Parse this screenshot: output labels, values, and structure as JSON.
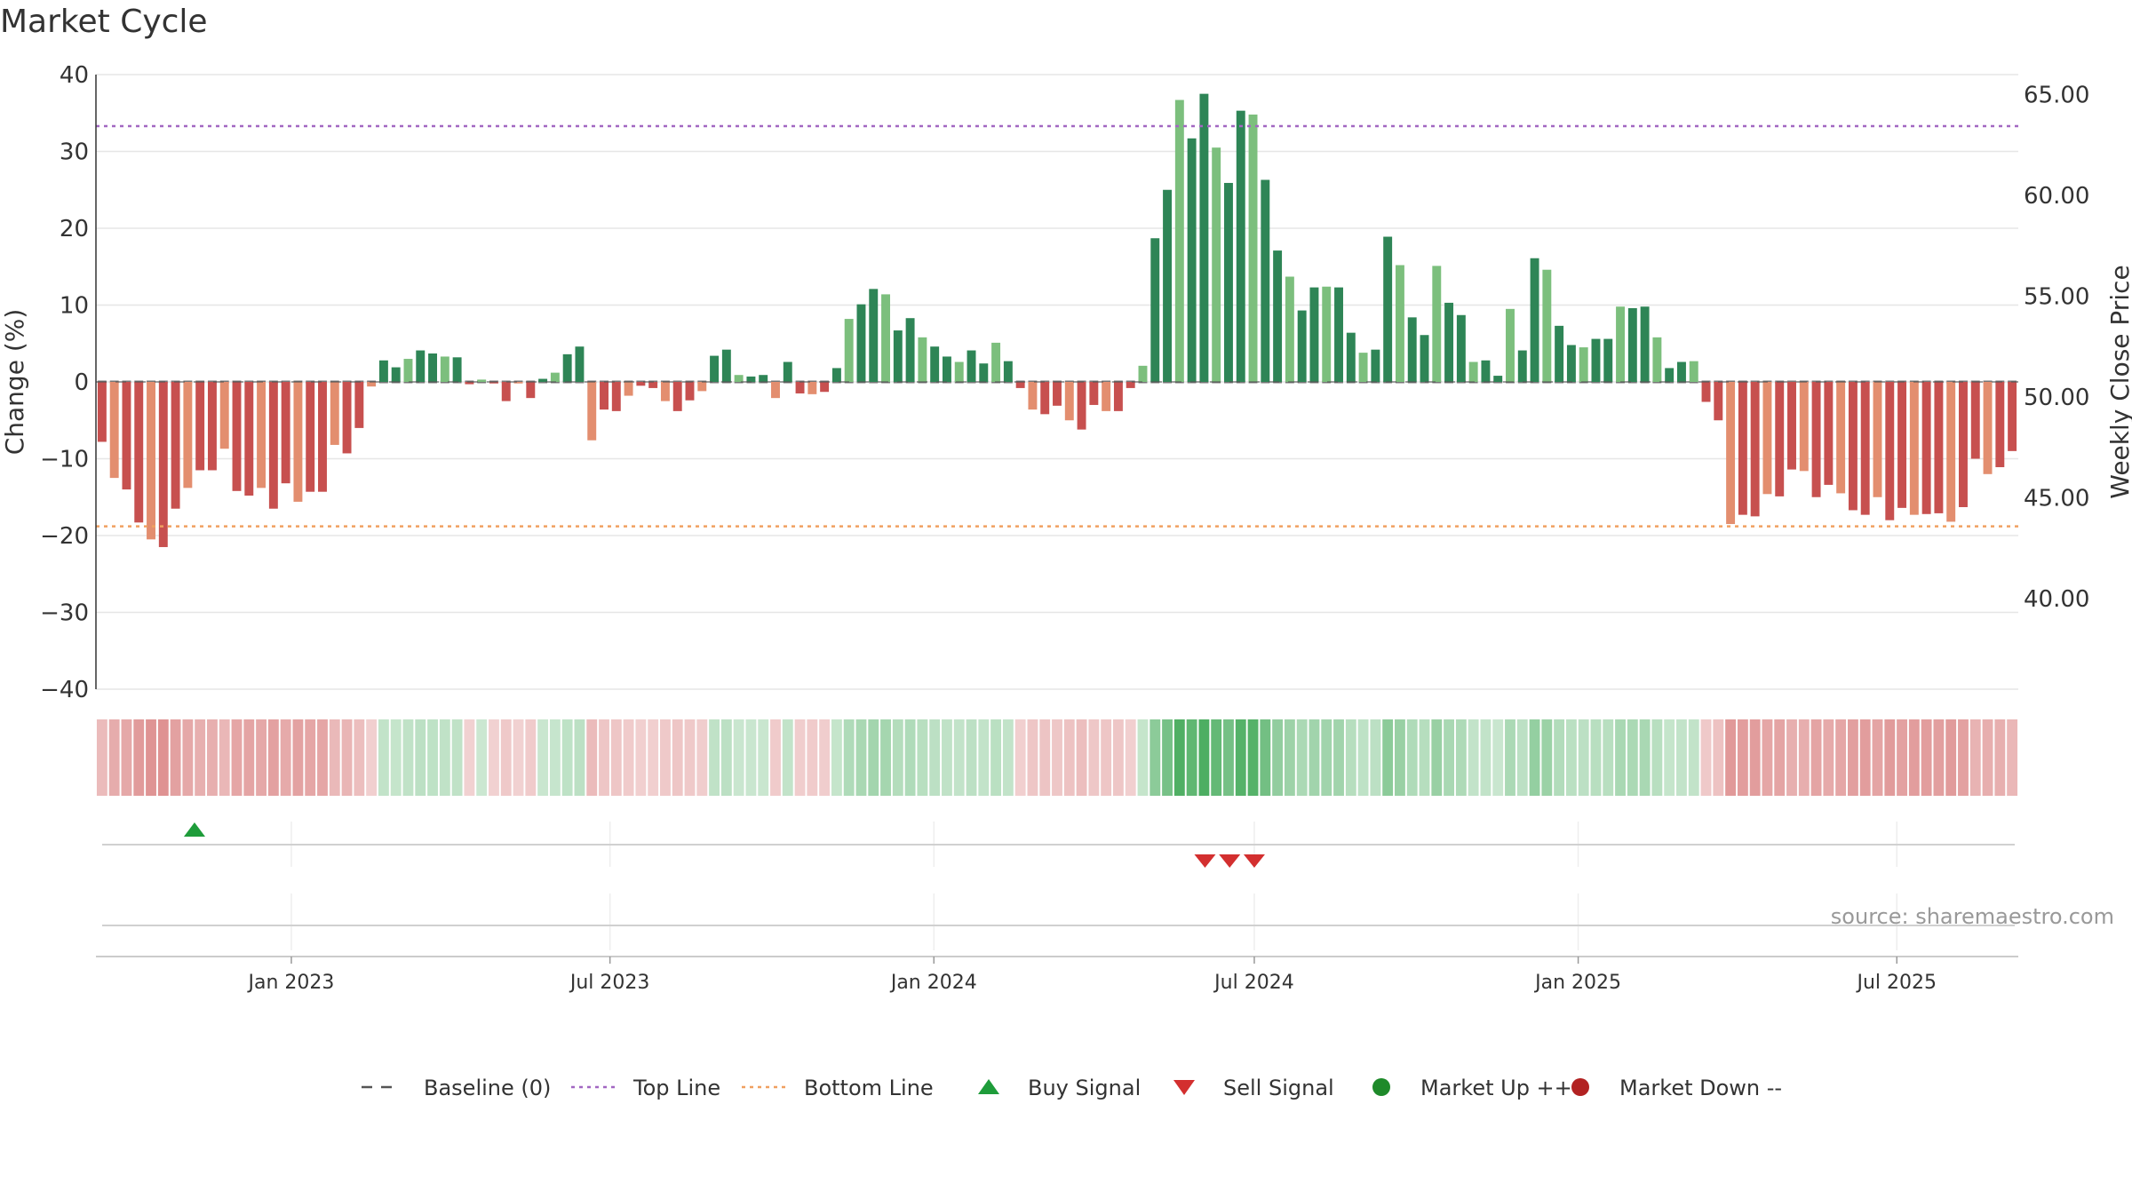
{
  "title": "Market Cycle",
  "source": "source: sharemaestro.com",
  "colors": {
    "down_dark": "#c7504f",
    "down_light": "#e38e6f",
    "up_dark": "#2e8556",
    "up_light": "#7cbf7d",
    "top_line": "#a267c2",
    "bottom_line": "#f0a060",
    "baseline": "#555555",
    "buy": "#1e9c3a",
    "sell": "#d32f2f",
    "market_up": "#1e8a2a",
    "market_down": "#b22222"
  },
  "legend": [
    {
      "label": "Baseline (0)",
      "icon": "dash-line",
      "color": "#555555"
    },
    {
      "label": "Top Line",
      "icon": "dot-line",
      "color": "#a267c2"
    },
    {
      "label": "Bottom Line",
      "icon": "dot-line",
      "color": "#f0a060"
    },
    {
      "label": "Buy Signal",
      "icon": "triangle-up",
      "color": "#1e9c3a"
    },
    {
      "label": "Sell Signal",
      "icon": "triangle-down",
      "color": "#d32f2f"
    },
    {
      "label": "Market Up ++",
      "icon": "circle",
      "color": "#1e8a2a"
    },
    {
      "label": "Market Down --",
      "icon": "circle",
      "color": "#b22222"
    }
  ],
  "chart_data": {
    "type": "bar",
    "ylabel": "Change (%)",
    "y2label": "Weekly Close Price",
    "ylim": [
      -40,
      40
    ],
    "yticks": [
      "40",
      "30",
      "20",
      "10",
      "0",
      "−10",
      "−20",
      "−30",
      "−40"
    ],
    "y2ticks": [
      "65.00",
      "60.00",
      "55.00",
      "50.00",
      "45.00",
      "40.00"
    ],
    "y2lim": [
      35.5,
      66.0
    ],
    "x_start": "2022-09-12",
    "x_end": "2025-09-08",
    "xticks": [
      "Jan 2023",
      "Jul 2023",
      "Jan 2024",
      "Jul 2024",
      "Jan 2025",
      "Jul 2025"
    ],
    "xtick_dates": [
      "2023-01-01",
      "2023-07-01",
      "2024-01-01",
      "2024-07-01",
      "2025-01-01",
      "2025-07-01"
    ],
    "top_line": 33.3,
    "bottom_line": -18.8,
    "baseline": 0,
    "grid": true,
    "legend_position": "bottom",
    "values": [
      -7.8,
      -12.5,
      -14,
      -18.3,
      -20.5,
      -21.5,
      -16.5,
      -13.8,
      -11.5,
      -11.5,
      -8.7,
      -14.2,
      -14.8,
      -13.8,
      -16.5,
      -13.2,
      -15.6,
      -14.3,
      -14.3,
      -8.2,
      -9.3,
      -6,
      -0.6,
      2.8,
      1.9,
      3,
      4.1,
      3.7,
      3.3,
      3.2,
      -0.3,
      0.3,
      -0.2,
      -2.5,
      -0.2,
      -2.1,
      0.4,
      1.2,
      3.6,
      4.6,
      -7.6,
      -3.6,
      -3.8,
      -1.8,
      -0.5,
      -0.8,
      -2.5,
      -3.8,
      -2.4,
      -1.2,
      3.4,
      4.2,
      0.9,
      0.7,
      0.9,
      -2.1,
      2.6,
      -1.5,
      -1.6,
      -1.3,
      1.8,
      8.2,
      10.1,
      12.1,
      11.4,
      6.7,
      8.3,
      5.8,
      4.6,
      3.3,
      2.6,
      4.1,
      2.4,
      5.1,
      2.7,
      -0.8,
      -3.6,
      -4.2,
      -3.1,
      -5,
      -6.2,
      -3,
      -3.8,
      -3.8,
      -0.8,
      2.1,
      18.7,
      25,
      36.7,
      31.7,
      37.5,
      30.5,
      25.9,
      35.3,
      34.8,
      26.3,
      17.1,
      13.7,
      9.3,
      12.3,
      12.4,
      12.3,
      6.4,
      3.8,
      4.2,
      18.9,
      15.2,
      8.4,
      6.1,
      15.1,
      10.3,
      8.7,
      2.6,
      2.8,
      0.8,
      9.5,
      4.1,
      16.1,
      14.6,
      7.3,
      4.8,
      4.5,
      5.6,
      5.6,
      9.8,
      9.6,
      9.8,
      5.8,
      1.8,
      2.6,
      2.7,
      -2.6,
      -5,
      -18.5,
      -17.3,
      -17.5,
      -14.6,
      -14.9,
      -11.4,
      -11.6,
      -15,
      -13.4,
      -14.5,
      -16.7,
      -17.3,
      -15,
      -18,
      -16.4,
      -17.3,
      -17.2,
      -17.1,
      -18.2,
      -16.3,
      -10,
      -12,
      -11.1,
      -9
    ]
  },
  "signals": {
    "buy_dates": [
      "2022-11-07"
    ],
    "sell_dates": [
      "2024-06-03",
      "2024-06-17",
      "2024-07-01"
    ]
  }
}
